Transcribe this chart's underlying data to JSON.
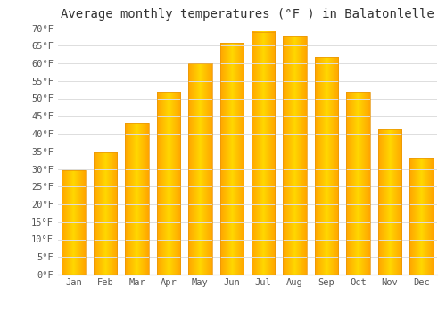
{
  "title": "Average monthly temperatures (°F ) in Balatonlelle",
  "months": [
    "Jan",
    "Feb",
    "Mar",
    "Apr",
    "May",
    "Jun",
    "Jul",
    "Aug",
    "Sep",
    "Oct",
    "Nov",
    "Dec"
  ],
  "values": [
    29.7,
    34.7,
    43.0,
    51.8,
    59.9,
    65.8,
    68.9,
    67.8,
    61.7,
    51.8,
    41.2,
    33.1
  ],
  "bar_color_center": "#FFD700",
  "bar_color_edge": "#FFA500",
  "background_color": "#ffffff",
  "grid_color": "#dddddd",
  "ylim": [
    0,
    70
  ],
  "ytick_step": 5,
  "title_fontsize": 10,
  "tick_fontsize": 7.5,
  "font_family": "monospace"
}
